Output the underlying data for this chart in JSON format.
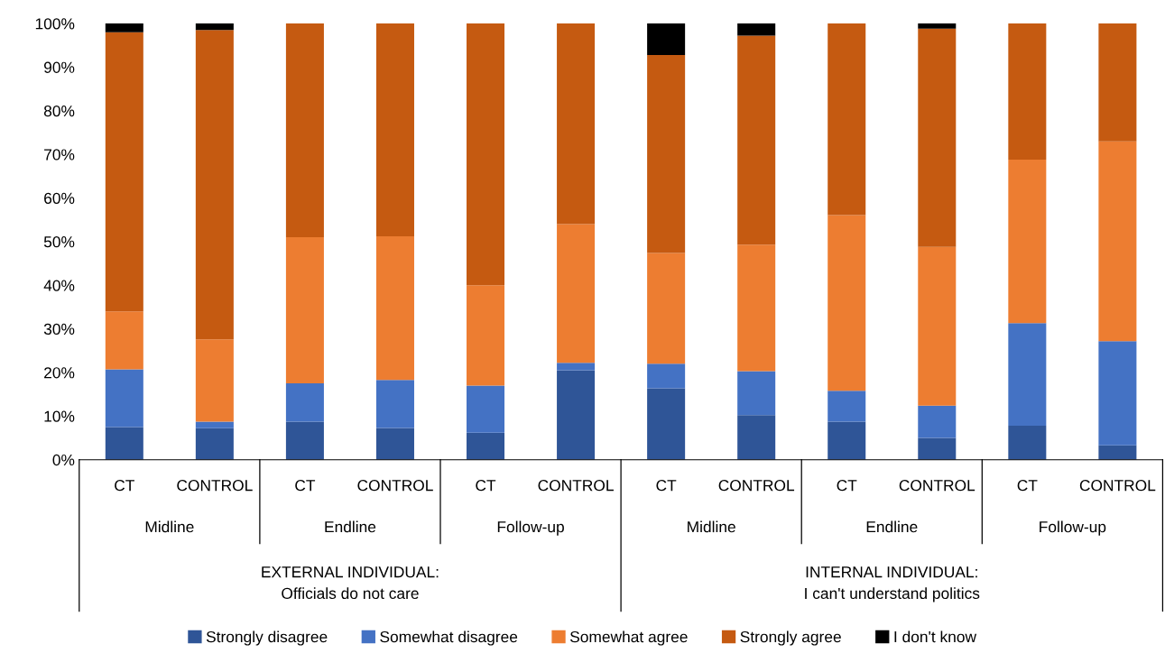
{
  "chart_data": {
    "type": "bar",
    "stacked": true,
    "categories": [
      "CT",
      "CONTROL",
      "CT",
      "CONTROL",
      "CT",
      "CONTROL",
      "CT",
      "CONTROL",
      "CT",
      "CONTROL",
      "CT",
      "CONTROL"
    ],
    "series": [
      {
        "name": "Strongly disagree",
        "color": "#2f5597",
        "values": [
          7.5,
          7.2,
          8.7,
          7.3,
          6.2,
          20.5,
          16.4,
          10.2,
          8.7,
          5.0,
          7.8,
          3.3
        ]
      },
      {
        "name": "Somewhat disagree",
        "color": "#4472c4",
        "values": [
          13.2,
          1.5,
          8.8,
          11.0,
          10.8,
          1.7,
          5.6,
          10.1,
          7.1,
          7.4,
          23.5,
          23.9
        ]
      },
      {
        "name": "Somewhat agree",
        "color": "#ed7d31",
        "values": [
          13.3,
          18.9,
          33.5,
          32.9,
          23.0,
          31.8,
          25.4,
          29.0,
          40.3,
          36.4,
          37.5,
          45.8
        ]
      },
      {
        "name": "Strongly agree",
        "color": "#c55a11",
        "values": [
          64.0,
          70.9,
          49.0,
          48.8,
          60.0,
          46.0,
          45.4,
          47.9,
          43.9,
          50.0,
          31.2,
          27.0
        ]
      },
      {
        "name": "I don't know",
        "color": "#000000",
        "values": [
          2.0,
          1.5,
          0,
          0,
          0,
          0,
          7.2,
          2.8,
          0,
          1.2,
          0,
          0
        ]
      }
    ],
    "ylim": [
      0,
      100
    ],
    "yticks": [
      {
        "value": 0,
        "label": "0%"
      },
      {
        "value": 10,
        "label": "10%"
      },
      {
        "value": 20,
        "label": "20%"
      },
      {
        "value": 30,
        "label": "30%"
      },
      {
        "value": 40,
        "label": "40%"
      },
      {
        "value": 50,
        "label": "50%"
      },
      {
        "value": 60,
        "label": "60%"
      },
      {
        "value": 70,
        "label": "70%"
      },
      {
        "value": 80,
        "label": "80%"
      },
      {
        "value": 90,
        "label": "90%"
      },
      {
        "value": 100,
        "label": "100%"
      }
    ],
    "annotations": [
      "Midline",
      "Endline",
      "Follow-up",
      "Midline",
      "Endline",
      "Follow-up",
      "EXTERNAL INDIVIDUAL:\nOfficials do not care",
      "INTERNAL INDIVIDUAL:\nI can't understand politics"
    ],
    "grid": false,
    "legend": "bottom"
  }
}
